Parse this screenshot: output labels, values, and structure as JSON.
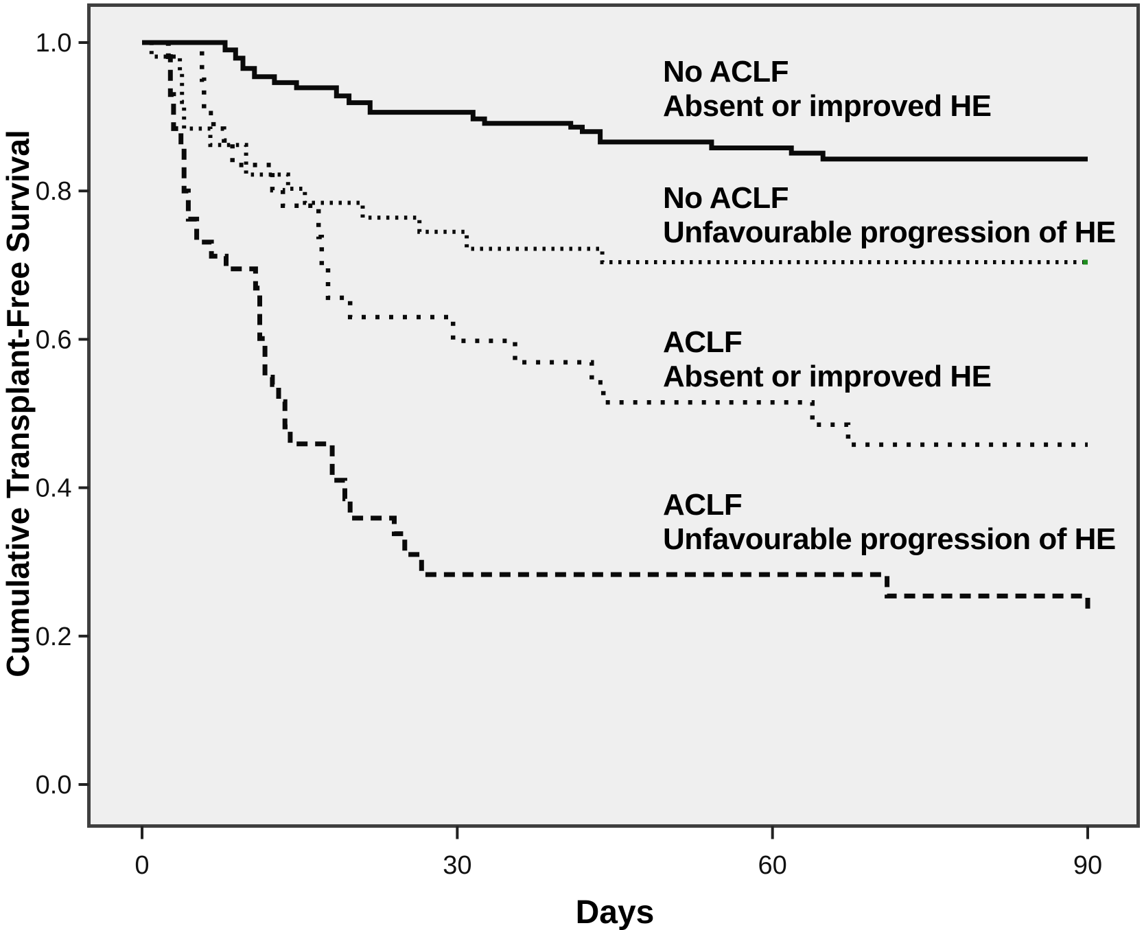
{
  "chart_data": {
    "type": "line",
    "subtype": "kaplan-meier-step",
    "title": "",
    "xlabel": "Days",
    "ylabel": "Cumulative Transplant-Free Survival",
    "x_ticks": [
      0,
      30,
      60,
      90
    ],
    "y_ticks": [
      1.0,
      0.8,
      0.6,
      0.4,
      0.2,
      0.0
    ],
    "y_tick_labels": [
      "1.0",
      "0.8",
      "0.6",
      "0.4",
      "0.2",
      "0.0"
    ],
    "x_tick_labels": [
      "0",
      "30",
      "60",
      "90"
    ],
    "xlim": [
      0,
      95
    ],
    "ylim": [
      -0.05,
      1.05
    ],
    "grid": false,
    "legend_position": "annotations-inside-plot",
    "plot_background": "#efefef",
    "outer_background": "#ffffff",
    "frame_color": "#3f3f3f",
    "curve_color": "#0a0a0a",
    "series": [
      {
        "name": "No ACLF — Absent or improved HE",
        "label_lines": [
          "No ACLF",
          "Absent or improved HE"
        ],
        "line_style": "solid",
        "points": [
          [
            0,
            1.0
          ],
          [
            7.9,
            0.99
          ],
          [
            8.9,
            0.979
          ],
          [
            9.6,
            0.965
          ],
          [
            10.7,
            0.954
          ],
          [
            12.6,
            0.946
          ],
          [
            14.7,
            0.939
          ],
          [
            18.5,
            0.928
          ],
          [
            19.7,
            0.919
          ],
          [
            21.7,
            0.906
          ],
          [
            31.5,
            0.897
          ],
          [
            32.6,
            0.891
          ],
          [
            40.8,
            0.886
          ],
          [
            41.9,
            0.88
          ],
          [
            43.6,
            0.866
          ],
          [
            54.2,
            0.858
          ],
          [
            61.8,
            0.851
          ],
          [
            64.8,
            0.843
          ],
          [
            90,
            0.843
          ]
        ],
        "value_at_90_days": 0.843
      },
      {
        "name": "No ACLF — Unfavourable progression of HE",
        "label_lines": [
          "No ACLF",
          "Unfavourable progression of HE"
        ],
        "line_style": "fine-dotted",
        "end_marker_color": "#1e8c1e",
        "points": [
          [
            0,
            1.0
          ],
          [
            0.9,
            0.981
          ],
          [
            3.6,
            0.962
          ],
          [
            3.8,
            0.92
          ],
          [
            4.0,
            0.884
          ],
          [
            6.5,
            0.862
          ],
          [
            9.9,
            0.822
          ],
          [
            13.9,
            0.803
          ],
          [
            15.5,
            0.784
          ],
          [
            21.0,
            0.764
          ],
          [
            26.4,
            0.745
          ],
          [
            30.9,
            0.722
          ],
          [
            43.8,
            0.704
          ],
          [
            90,
            0.704
          ]
        ],
        "value_at_90_days": 0.704
      },
      {
        "name": "ACLF — Absent or improved HE",
        "label_lines": [
          "ACLF",
          "Absent or improved HE"
        ],
        "line_style": "dotted",
        "points": [
          [
            0,
            1.0
          ],
          [
            5.7,
            0.95
          ],
          [
            5.9,
            0.905
          ],
          [
            6.8,
            0.884
          ],
          [
            7.8,
            0.868
          ],
          [
            8.6,
            0.835
          ],
          [
            12.4,
            0.801
          ],
          [
            13.4,
            0.78
          ],
          [
            16.8,
            0.738
          ],
          [
            17.1,
            0.7
          ],
          [
            17.7,
            0.656
          ],
          [
            19.8,
            0.63
          ],
          [
            29.6,
            0.598
          ],
          [
            35.5,
            0.569
          ],
          [
            42.8,
            0.542
          ],
          [
            43.9,
            0.515
          ],
          [
            63.8,
            0.485
          ],
          [
            67.2,
            0.458
          ],
          [
            90,
            0.458
          ]
        ],
        "value_at_90_days": 0.458
      },
      {
        "name": "ACLF — Unfavourable progression of HE",
        "label_lines": [
          "ACLF",
          "Unfavourable progression of HE"
        ],
        "line_style": "dashed",
        "points": [
          [
            0,
            1.0
          ],
          [
            2.5,
            0.981
          ],
          [
            2.7,
            0.93
          ],
          [
            3.0,
            0.884
          ],
          [
            3.7,
            0.857
          ],
          [
            4.0,
            0.8
          ],
          [
            4.4,
            0.762
          ],
          [
            5.2,
            0.731
          ],
          [
            6.6,
            0.712
          ],
          [
            8.0,
            0.695
          ],
          [
            10.8,
            0.669
          ],
          [
            11.2,
            0.601
          ],
          [
            11.7,
            0.549
          ],
          [
            12.4,
            0.539
          ],
          [
            13.0,
            0.516
          ],
          [
            13.6,
            0.482
          ],
          [
            14.1,
            0.459
          ],
          [
            18.1,
            0.41
          ],
          [
            19.3,
            0.385
          ],
          [
            19.8,
            0.359
          ],
          [
            24.0,
            0.338
          ],
          [
            25.0,
            0.31
          ],
          [
            26.6,
            0.283
          ],
          [
            70.9,
            0.254
          ],
          [
            90,
            0.237
          ]
        ],
        "value_at_90_days": 0.237
      }
    ]
  }
}
